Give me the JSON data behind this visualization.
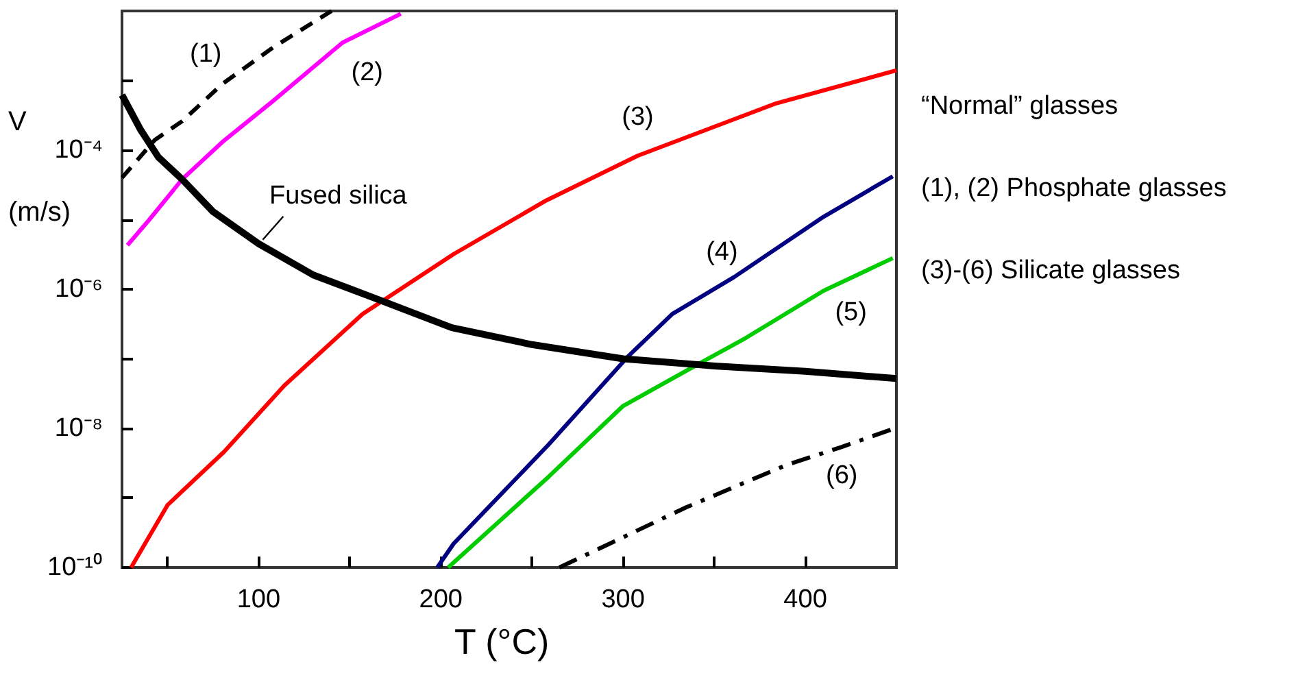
{
  "chart_data": {
    "type": "line",
    "xlabel": "T (°C)",
    "ylabel": "V (m/s)",
    "log": "y",
    "grid": false,
    "legend": false,
    "marker": "none",
    "xlim": [
      25,
      450
    ],
    "xticks": [
      {
        "value": 50,
        "label": null
      },
      100,
      {
        "value": 150,
        "label": null
      },
      200,
      {
        "value": 250,
        "label": null
      },
      300,
      {
        "value": 350,
        "label": null
      },
      400
    ],
    "ylim": [
      1e-10,
      0.01
    ],
    "yticks": [
      {
        "value": 1e-10,
        "label": "10⁻¹⁰"
      },
      {
        "value": 1e-09,
        "label": null
      },
      {
        "value": 1e-08,
        "label": "10⁻⁸"
      },
      {
        "value": 1e-07,
        "label": null
      },
      {
        "value": 1e-06,
        "label": "10⁻⁶"
      },
      {
        "value": 1e-05,
        "label": null
      },
      {
        "value": 0.0001,
        "label": "10⁻⁴"
      },
      {
        "value": 0.001,
        "label": null
      }
    ],
    "annotations": [
      "“Normal” glasses",
      "(1), (2) Phosphate glasses",
      "(3)-(6) Silicate glasses"
    ],
    "series": [
      {
        "name": "Fused silica",
        "color": "#000000",
        "line_style": "solid",
        "x": [
          25,
          35,
          45,
          58,
          75,
          100,
          130,
          167,
          206,
          250,
          300,
          350,
          400,
          450
        ],
        "values": [
          0.00062,
          0.0002,
          7.9e-05,
          3.8e-05,
          1.3e-05,
          4.5e-06,
          1.6e-06,
          6.9e-07,
          2.8e-07,
          1.6e-07,
          1e-07,
          7.9e-08,
          6.6e-08,
          5.2e-08
        ]
      },
      {
        "name": "(1)",
        "color": "#000000",
        "line_style": "dashed",
        "x": [
          25,
          43,
          58,
          80,
          108,
          140
        ],
        "values": [
          4e-05,
          0.00014,
          0.00026,
          0.00089,
          0.003,
          0.01
        ]
      },
      {
        "name": "(2)",
        "color": "#ff00ff",
        "line_style": "solid",
        "x": [
          28,
          40,
          58,
          80,
          108,
          146,
          178
        ],
        "values": [
          4.3e-06,
          1e-05,
          3.8e-05,
          0.00013,
          0.00051,
          0.0035,
          0.0091
        ]
      },
      {
        "name": "(3)",
        "color": "#ff0000",
        "line_style": "solid",
        "x": [
          30,
          50,
          81,
          114,
          157,
          207,
          258,
          308,
          384,
          450
        ],
        "values": [
          1e-10,
          7.9e-10,
          4.6e-09,
          4.1e-08,
          4.4e-07,
          3.2e-06,
          1.9e-05,
          8.3e-05,
          0.00047,
          0.0014
        ]
      },
      {
        "name": "(4)",
        "color": "#000080",
        "line_style": "solid",
        "x": [
          198,
          207,
          259,
          303,
          327,
          361,
          410,
          448
        ],
        "values": [
          1e-10,
          2.2e-10,
          5.8e-09,
          1.1e-07,
          4.4e-07,
          1.5e-06,
          1.1e-05,
          4.2e-05
        ]
      },
      {
        "name": "(5)",
        "color": "#00cc00",
        "line_style": "solid",
        "x": [
          204,
          259,
          300,
          343,
          366,
          410,
          448
        ],
        "values": [
          1e-10,
          2e-09,
          2.1e-08,
          8.9e-08,
          1.9e-07,
          9.5e-07,
          2.8e-06
        ]
      },
      {
        "name": "(6)",
        "color": "#000000",
        "line_style": "dashdot",
        "x": [
          265,
          335,
          390,
          420,
          449
        ],
        "values": [
          1e-10,
          7.4e-10,
          3e-09,
          5.4e-09,
          1e-08
        ]
      }
    ]
  }
}
